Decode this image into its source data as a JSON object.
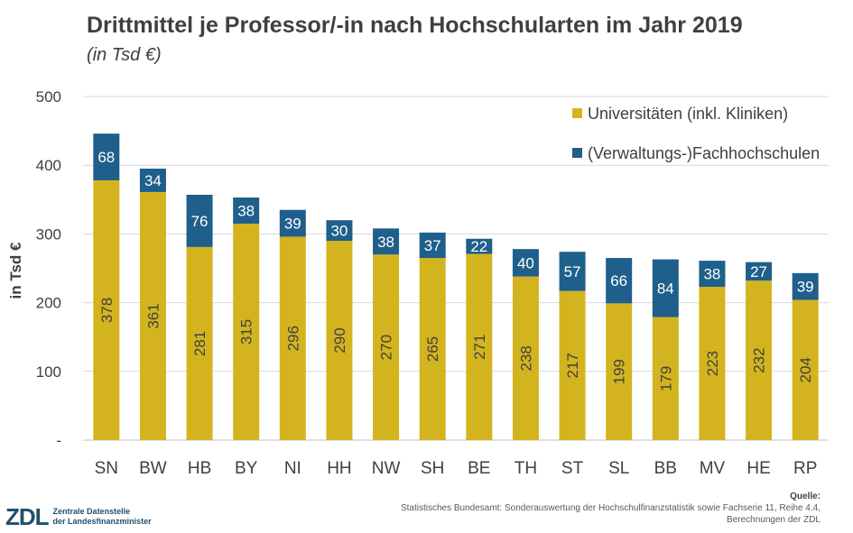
{
  "title": "Drittmittel je Professor/-in nach Hochschularten im Jahr 2019",
  "subtitle": "(in Tsd €)",
  "chart_data": {
    "type": "bar",
    "stacked": true,
    "ylabel": "in Tsd €",
    "ylim": [
      0,
      500
    ],
    "yticks": [
      "-",
      "100",
      "200",
      "300",
      "400",
      "500"
    ],
    "grid": true,
    "legend_position": "top-right",
    "categories": [
      "SN",
      "BW",
      "HB",
      "BY",
      "NI",
      "HH",
      "NW",
      "SH",
      "BE",
      "TH",
      "ST",
      "SL",
      "BB",
      "MV",
      "HE",
      "RP"
    ],
    "series": [
      {
        "name": "Universitäten (inkl. Kliniken)",
        "color": "#d4b41e",
        "label_color": "#404040",
        "values": [
          378,
          361,
          281,
          315,
          296,
          290,
          270,
          265,
          271,
          238,
          217,
          199,
          179,
          223,
          232,
          204
        ]
      },
      {
        "name": "(Verwaltungs-)Fachhochschulen",
        "color": "#1f5f8b",
        "label_color": "#ffffff",
        "values": [
          68,
          34,
          76,
          38,
          39,
          30,
          38,
          37,
          22,
          40,
          57,
          66,
          84,
          38,
          27,
          39
        ]
      }
    ]
  },
  "logo": {
    "mark": "ZDL",
    "line1": "Zentrale Datenstelle",
    "line2": "der Landesfinanzminister"
  },
  "source": {
    "title": "Quelle:",
    "line1": "Statistisches Bundesamt: Sonderauswertung der Hochschulfinanzstatistik sowie Fachserie 11, Reihe 4.4,",
    "line2": "Berechnungen der ZDL"
  }
}
